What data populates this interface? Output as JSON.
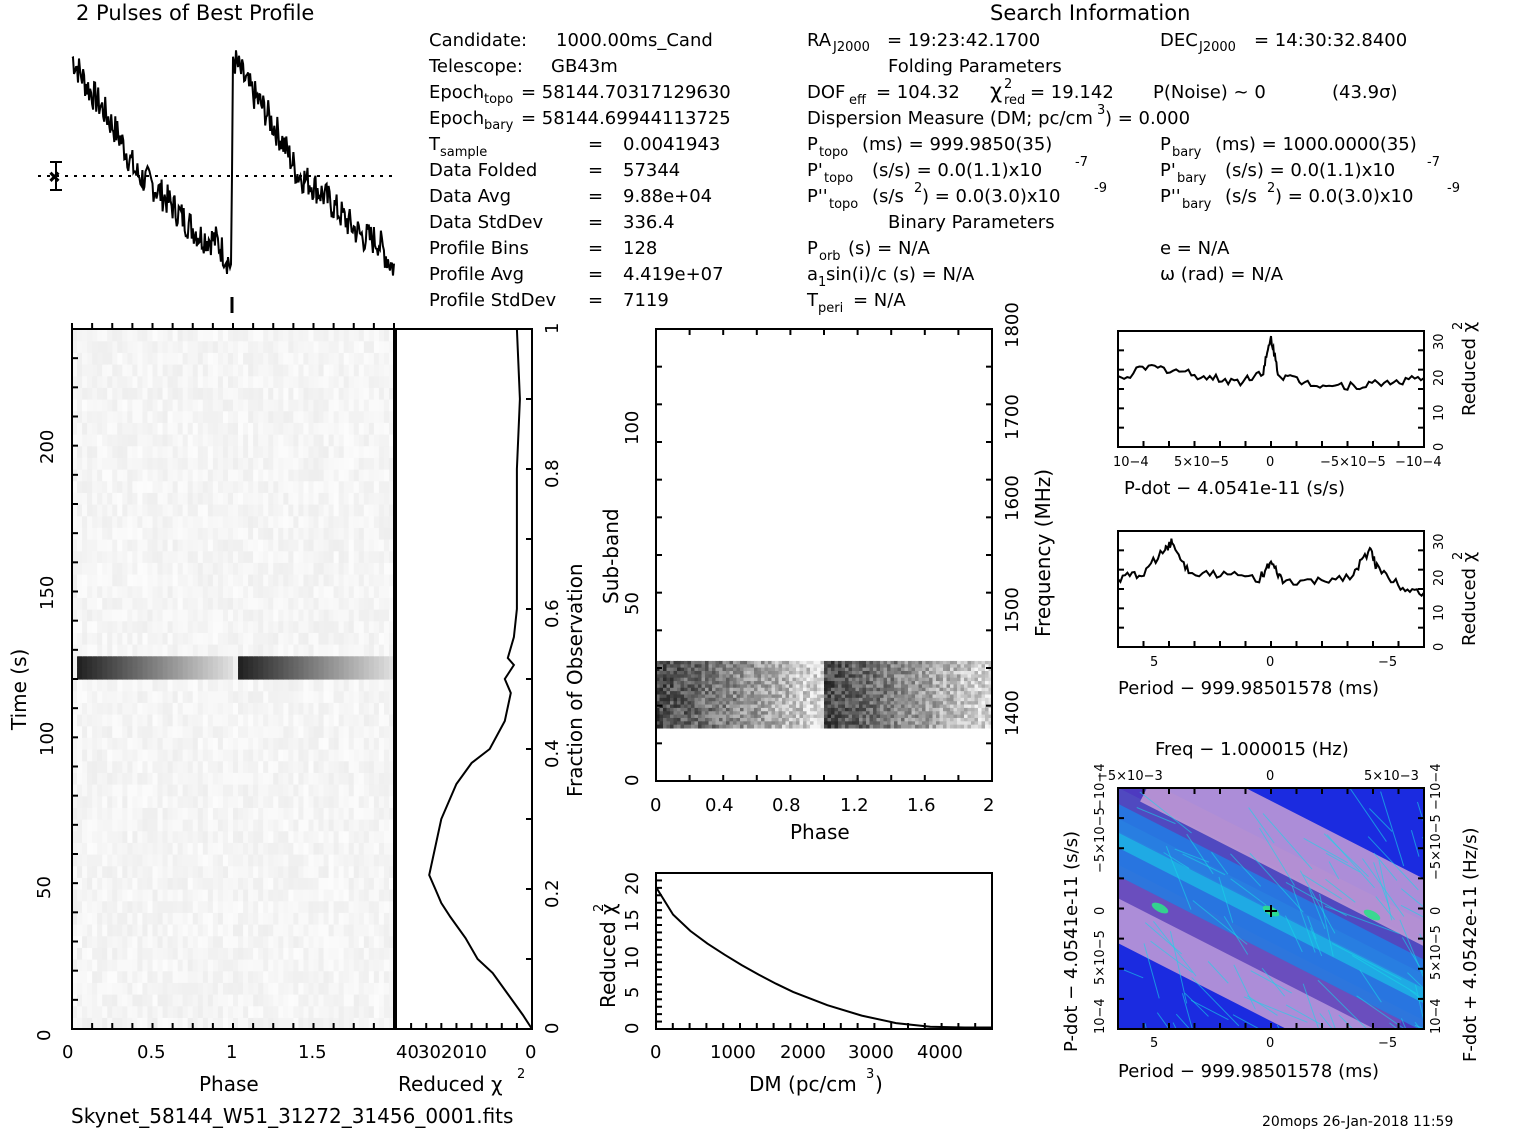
{
  "title": "2 Pulses of Best Profile",
  "search_info_title": "Search Information",
  "folding_title": "Folding Parameters",
  "binary_title": "Binary Parameters",
  "filename": "Skynet_58144_W51_31272_31456_0001.fits",
  "footer_stamp": "20mops 26-Jan-2018 11:59",
  "info_left": [
    [
      "Candidate:",
      "1000.00ms_Cand"
    ],
    [
      "Telescope:",
      "GB43m"
    ],
    [
      "Epoch",
      "topo",
      "= 58144.70317129630"
    ],
    [
      "Epoch",
      "bary",
      "= 58144.69944113725"
    ],
    [
      "T",
      "sample",
      "=",
      "0.0041943"
    ],
    [
      "Data Folded",
      "=",
      "57344"
    ],
    [
      "Data Avg",
      "=",
      "9.88e+04"
    ],
    [
      "Data StdDev",
      "=",
      "336.4"
    ],
    [
      "Profile Bins",
      "=",
      "128"
    ],
    [
      "Profile Avg",
      "=",
      "4.419e+07"
    ],
    [
      "Profile StdDev",
      "=",
      "7119"
    ]
  ],
  "info_mid": {
    "ra": "= 19:23:42.1700",
    "dof": "DOF",
    "dof_sub": "eff",
    "dof_val": "= 104.32",
    "chi_val": "= 19.142",
    "pnoise": "P(Noise) ~ 0",
    "sigma": "(43.9σ)",
    "dm_line": "Dispersion Measure (DM; pc/cm",
    "dm_val": ") = 0.000",
    "ptopo": "(ms) =  999.9850(35)",
    "pdtopo": "(s/s) = 0.0(1.1)x10",
    "pdtopo_exp": "-7",
    "pddtopo": "(s/s",
    "pddtopo_val": ") = 0.0(3.0)x10",
    "pddtopo_exp": "-9",
    "porb": "(s) = N/A",
    "a1": "sin(i)/c (s) = N/A",
    "tperi": "= N/A"
  },
  "info_right": {
    "dec": "= 14:30:32.8400",
    "pbary": "(ms) =  1000.0000(35)",
    "pdbary": "(s/s) = 0.0(1.1)x10",
    "pdbary_exp": "-7",
    "pddbary": "(s/s",
    "pddbary_val": ") = 0.0(3.0)x10",
    "pddbary_exp": "-9",
    "ecc": "e = N/A",
    "omega": "ω (rad) = N/A"
  },
  "axes": {
    "phase": "Phase",
    "time": "Time (s)",
    "redchi": "Reduced χ",
    "fraction": "Fraction of Observation",
    "subband": "Sub-band",
    "freq": "Frequency (MHz)",
    "dm": "DM (pc/cm",
    "pdot_x": "P-dot − 4.0541e-11 (s/s)",
    "period_x": "Period − 999.98501578 (ms)",
    "freq_top": "Freq − 1.000015 (Hz)",
    "pdot_y": "P-dot − 4.0541e-11 (s/s)",
    "fdot_y": "F-dot + 4.0542e-11 (Hz/s)"
  },
  "chart_data": [
    {
      "id": "profile",
      "type": "line",
      "title": "2 Pulses of Best Profile",
      "xlim": [
        0,
        2
      ],
      "description_series": "Folded pulse profile repeated twice; sharp rise at phase 0 and 1 followed by a slow decay",
      "x": [
        0,
        0.1,
        0.2,
        0.3,
        0.4,
        0.5,
        0.6,
        0.7,
        0.8,
        0.9,
        0.99,
        1.0,
        1.1,
        1.2,
        1.3,
        1.4,
        1.5,
        1.6,
        1.7,
        1.8,
        1.9,
        1.99
      ],
      "values": [
        0.95,
        0.82,
        0.72,
        0.6,
        0.45,
        0.4,
        0.33,
        0.25,
        0.18,
        0.16,
        0.05,
        0.95,
        0.82,
        0.72,
        0.6,
        0.45,
        0.4,
        0.33,
        0.25,
        0.18,
        0.16,
        0.05
      ]
    },
    {
      "id": "time-phase",
      "type": "heatmap",
      "xlabel": "Phase",
      "ylabel": "Time (s)",
      "xlim": [
        0,
        2
      ],
      "ylim": [
        0,
        240
      ],
      "x_ticks": [
        "0",
        "0.5",
        "1",
        "1.5"
      ],
      "y_ticks": [
        "0",
        "50",
        "100",
        "150",
        "200"
      ],
      "bright_band_time": [
        121,
        127
      ]
    },
    {
      "id": "redchi-vs-time",
      "type": "line",
      "xlabel": "Reduced χ2",
      "ylabel": "Fraction of Observation",
      "x_ticks": [
        "40",
        "30",
        "20",
        "10",
        "0"
      ],
      "y_ticks": [
        "0",
        "0.2",
        "0.4",
        "0.6",
        "0.8",
        "1"
      ],
      "x": [
        0,
        3,
        8,
        13,
        18,
        22,
        27,
        30,
        32,
        34,
        30,
        25,
        20,
        14,
        9,
        7,
        9,
        6,
        8,
        6,
        5,
        5,
        5,
        4,
        5
      ],
      "y": [
        0,
        0.02,
        0.05,
        0.08,
        0.1,
        0.13,
        0.16,
        0.18,
        0.2,
        0.22,
        0.3,
        0.35,
        0.38,
        0.4,
        0.44,
        0.48,
        0.5,
        0.52,
        0.53,
        0.56,
        0.6,
        0.7,
        0.8,
        0.9,
        1.0
      ]
    },
    {
      "id": "subband-phase",
      "type": "heatmap",
      "xlabel": "Phase",
      "ylabel": "Sub-band",
      "y2label": "Frequency (MHz)",
      "xlim": [
        0,
        2
      ],
      "ylim": [
        0,
        128
      ],
      "x_ticks": [
        "0",
        "0.4",
        "0.8",
        "1.2",
        "1.6",
        "2"
      ],
      "y_ticks": [
        "0",
        "50",
        "100"
      ],
      "y2_ticks": [
        "1400",
        "1500",
        "1600",
        "1700",
        "1800"
      ],
      "active_subbands": [
        15,
        34
      ]
    },
    {
      "id": "dm-curve",
      "type": "line",
      "xlabel": "DM (pc/cm3)",
      "ylabel": "Reduced χ2",
      "xlim": [
        0,
        4900
      ],
      "ylim": [
        0,
        21
      ],
      "x_ticks": [
        "0",
        "1000",
        "2000",
        "3000",
        "4000"
      ],
      "y_ticks": [
        "0",
        "5",
        "10",
        "15",
        "20"
      ],
      "x": [
        0,
        250,
        500,
        750,
        1000,
        1250,
        1500,
        1750,
        2000,
        2500,
        3000,
        3500,
        4000,
        4500,
        4900
      ],
      "values": [
        19.1,
        15.4,
        13.2,
        11.5,
        10.0,
        8.6,
        7.3,
        6.1,
        5.0,
        3.2,
        1.8,
        0.8,
        0.3,
        0.2,
        0.2
      ]
    },
    {
      "id": "pdot-curve",
      "type": "line",
      "xlabel": "P-dot − 4.0541e-11 (s/s)",
      "ylabel": "Reduced χ2",
      "xlim": [
        0.0001,
        -0.0001
      ],
      "ylim": [
        0,
        32
      ],
      "x_ticks": [
        "10−4",
        "5×10−5",
        "0",
        "−5×10−5",
        "−10−4"
      ],
      "y_ticks": [
        "0",
        "10",
        "20",
        "30"
      ],
      "x": [
        0.0001,
        8e-05,
        6e-05,
        4e-05,
        2e-05,
        5e-06,
        0,
        -5e-06,
        -2e-05,
        -4e-05,
        -6e-05,
        -8e-05,
        -0.0001
      ],
      "values": [
        19,
        22,
        21,
        19,
        18,
        21,
        30,
        20,
        18,
        17,
        17,
        18,
        19
      ]
    },
    {
      "id": "period-curve",
      "type": "line",
      "xlabel": "Period − 999.98501578 (ms)",
      "ylabel": "Reduced χ2",
      "xlim": [
        6.5,
        -6.5
      ],
      "ylim": [
        0,
        32
      ],
      "x_ticks": [
        "5",
        "0",
        "−5"
      ],
      "y_ticks": [
        "0",
        "10",
        "20",
        "30"
      ],
      "x": [
        6.5,
        5.5,
        4.5,
        4.2,
        3.5,
        2,
        0.5,
        0,
        -0.5,
        -2,
        -3.5,
        -4.2,
        -4.5,
        -5.5,
        -6.5
      ],
      "values": [
        19,
        20,
        27,
        29,
        21,
        20,
        19,
        23,
        18,
        18,
        20,
        27,
        22,
        17,
        15
      ]
    },
    {
      "id": "period-pdot-plane",
      "type": "heatmap",
      "xlabel": "Period − 999.98501578 (ms)",
      "ylabel": "P-dot − 4.0541e-11 (s/s)",
      "x2label": "Freq − 1.000015 (Hz)",
      "y2label": "F-dot + 4.0542e-11 (Hz/s)",
      "x_ticks": [
        "5",
        "0",
        "−5"
      ],
      "x2_ticks": [
        "−5×10−3",
        "0",
        "5×10−3"
      ],
      "y_ticks": [
        "10−4",
        "5×10−5",
        "0",
        "−5×10−5",
        "−10−4"
      ],
      "y2_ticks": [
        "10−4",
        "5×10−5",
        "0",
        "−5×10−5",
        "−10−4"
      ],
      "colors": [
        "#1b2be0",
        "#2a7de0",
        "#18d6e8",
        "#5a3fb8",
        "#c69fd6",
        "#2ee08a"
      ]
    }
  ]
}
